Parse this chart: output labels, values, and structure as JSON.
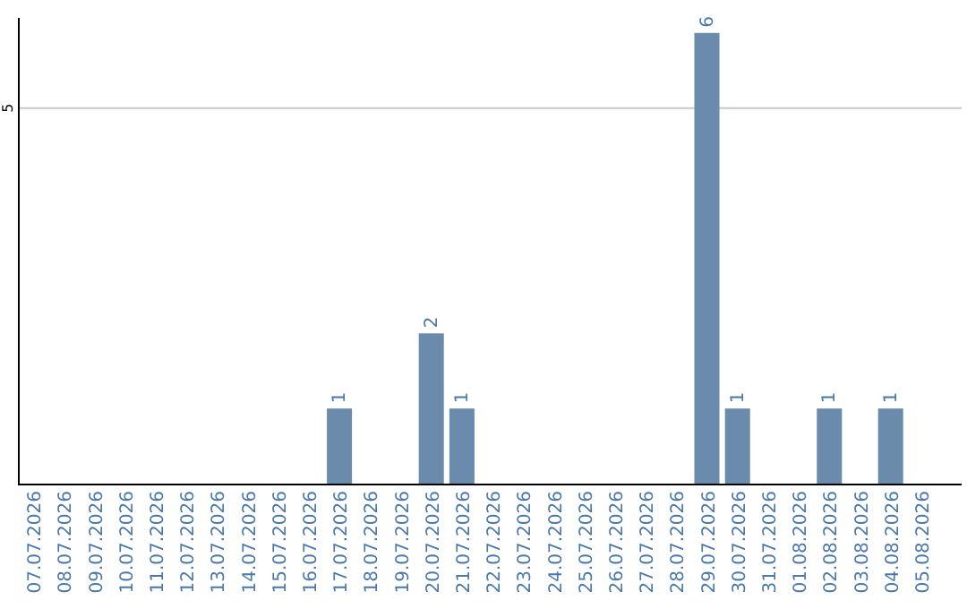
{
  "chart_data": {
    "type": "bar",
    "categories": [
      "07.07.2026",
      "08.07.2026",
      "09.07.2026",
      "10.07.2026",
      "11.07.2026",
      "12.07.2026",
      "13.07.2026",
      "14.07.2026",
      "15.07.2026",
      "16.07.2026",
      "17.07.2026",
      "18.07.2026",
      "19.07.2026",
      "20.07.2026",
      "21.07.2026",
      "22.07.2026",
      "23.07.2026",
      "24.07.2026",
      "25.07.2026",
      "26.07.2026",
      "27.07.2026",
      "28.07.2026",
      "29.07.2026",
      "30.07.2026",
      "31.07.2026",
      "01.08.2026",
      "02.08.2026",
      "03.08.2026",
      "04.08.2026",
      "05.08.2026"
    ],
    "values": [
      0,
      0,
      0,
      0,
      0,
      0,
      0,
      0,
      0,
      0,
      1,
      0,
      0,
      2,
      1,
      0,
      0,
      0,
      0,
      0,
      0,
      0,
      6,
      1,
      0,
      0,
      1,
      0,
      1,
      0
    ],
    "value_labels": [
      null,
      null,
      null,
      null,
      null,
      null,
      null,
      null,
      null,
      null,
      "1",
      null,
      null,
      "2",
      "1",
      null,
      null,
      null,
      null,
      null,
      null,
      null,
      "6",
      "1",
      null,
      null,
      "1",
      null,
      "1",
      null
    ],
    "color": "#6a8bab",
    "ylim": [
      0,
      6.2
    ],
    "yticks": [
      5
    ],
    "grid": "y"
  }
}
